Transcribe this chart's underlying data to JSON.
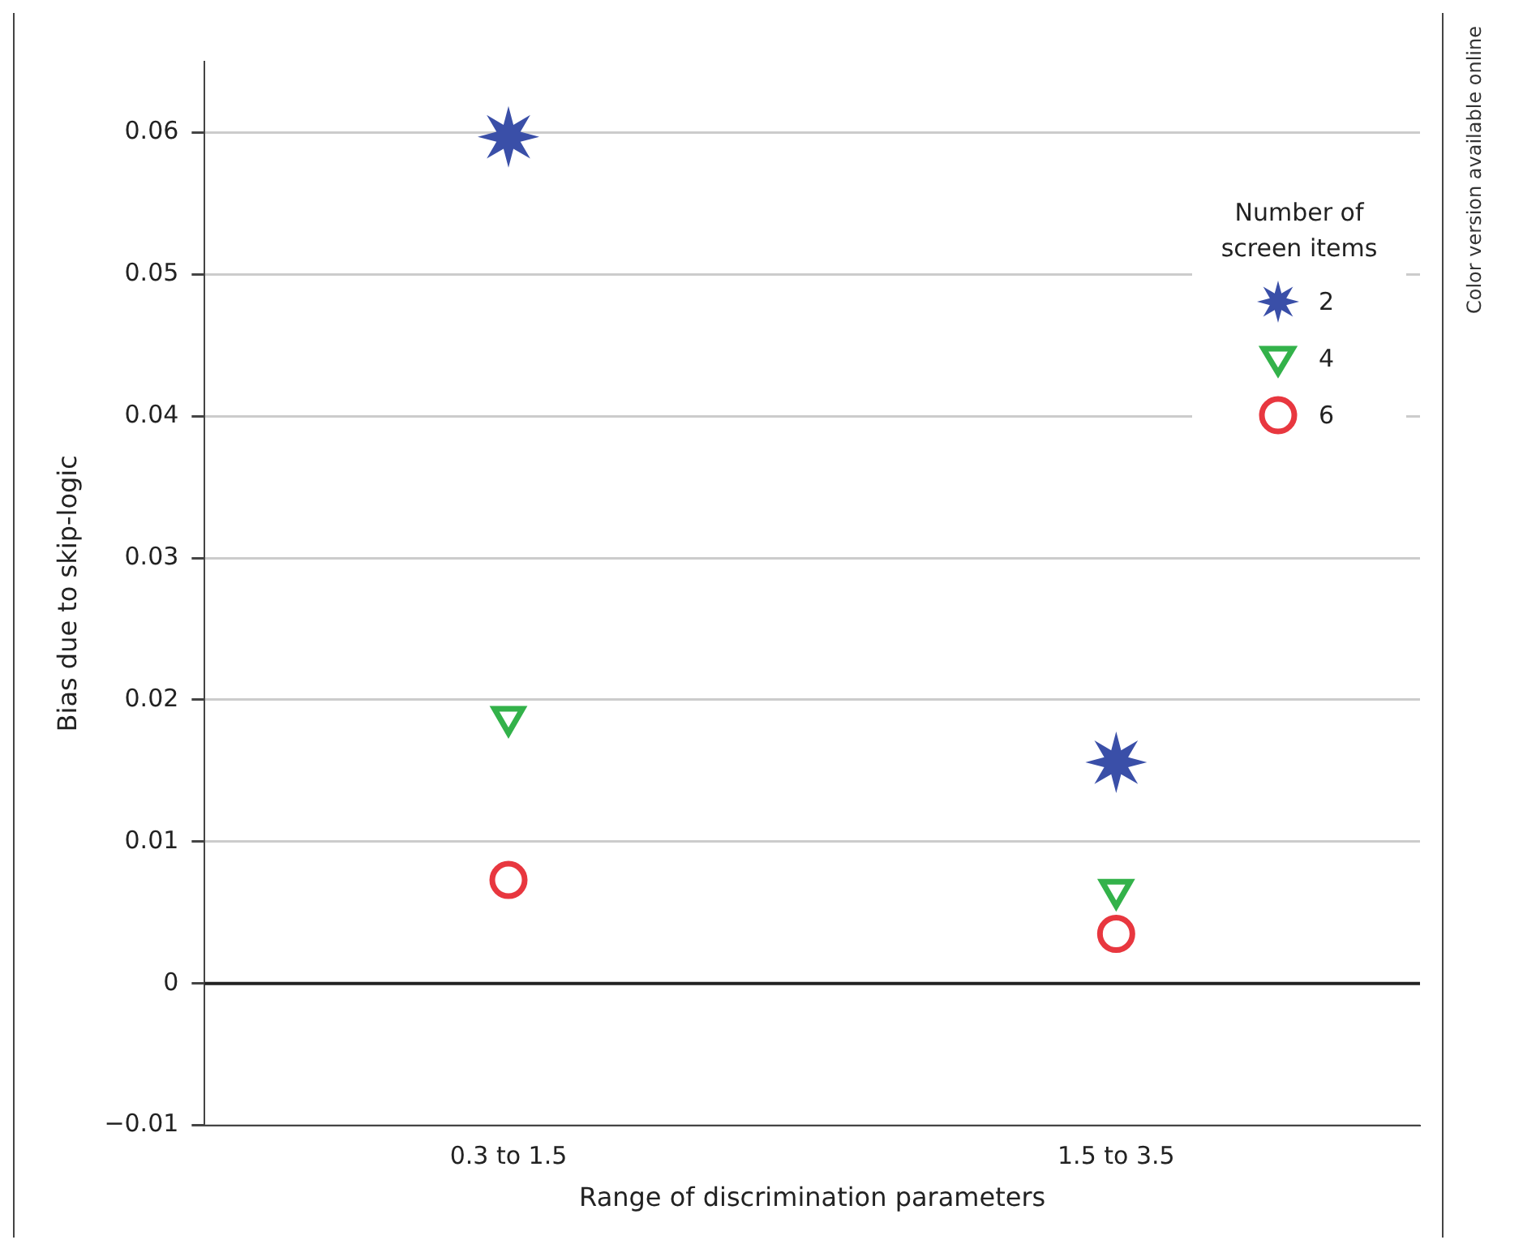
{
  "chart_data": {
    "type": "scatter",
    "xlabel": "Range of discrimination parameters",
    "ylabel": "Bias due to skip-logic",
    "legend_title": "Number of screen items",
    "categories": [
      "0.3 to 1.5",
      "1.5 to 3.5"
    ],
    "series": [
      {
        "name": "2",
        "color": "#3a4fa8",
        "marker": "star",
        "values": [
          0.0597,
          0.0156
        ]
      },
      {
        "name": "4",
        "color": "#33b24a",
        "marker": "triangle",
        "values": [
          0.0188,
          0.0066
        ]
      },
      {
        "name": "6",
        "color": "#e8373f",
        "marker": "circle",
        "values": [
          0.0073,
          0.0035
        ]
      }
    ],
    "ylim": [
      -0.01,
      0.065
    ],
    "yticks": [
      -0.01,
      0,
      0.01,
      0.02,
      0.03,
      0.04,
      0.05,
      0.06
    ],
    "grid": "y",
    "legend": "top right",
    "ref_lines": [
      {
        "axis": "y",
        "value": 0,
        "color": "#222222"
      }
    ],
    "annotations": [
      "Color version available online"
    ]
  }
}
